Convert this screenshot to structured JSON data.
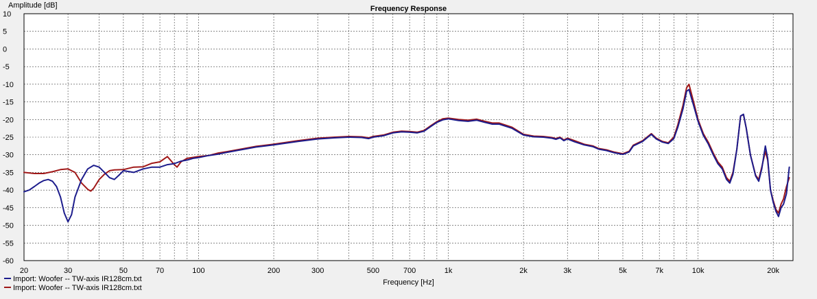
{
  "chart_data": {
    "type": "line",
    "title": "Frequency Response",
    "xlabel": "Frequency [Hz]",
    "ylabel": "Amplitude [dB]",
    "xscale": "log",
    "xlim": [
      20,
      24000
    ],
    "ylim": [
      -60,
      10
    ],
    "grid": true,
    "legend_position": "bottom-left",
    "xticks": [
      {
        "v": 20,
        "label": "20"
      },
      {
        "v": 30,
        "label": "30"
      },
      {
        "v": 50,
        "label": "50"
      },
      {
        "v": 70,
        "label": "70"
      },
      {
        "v": 100,
        "label": "100"
      },
      {
        "v": 200,
        "label": "200"
      },
      {
        "v": 300,
        "label": "300"
      },
      {
        "v": 500,
        "label": "500"
      },
      {
        "v": 700,
        "label": "700"
      },
      {
        "v": 1000,
        "label": "1k"
      },
      {
        "v": 2000,
        "label": "2k"
      },
      {
        "v": 3000,
        "label": "3k"
      },
      {
        "v": 5000,
        "label": "5k"
      },
      {
        "v": 7000,
        "label": "7k"
      },
      {
        "v": 10000,
        "label": "10k"
      },
      {
        "v": 20000,
        "label": "20k"
      }
    ],
    "yticks": [
      10,
      5,
      0,
      -5,
      -10,
      -15,
      -20,
      -25,
      -30,
      -35,
      -40,
      -45,
      -50,
      -55,
      -60
    ],
    "series": [
      {
        "name": "Import: Woofer -- TW-axis IR128cm.txt",
        "color": "#1c1c8c",
        "points": [
          [
            20,
            -40.5
          ],
          [
            21,
            -40
          ],
          [
            22,
            -39
          ],
          [
            23,
            -38
          ],
          [
            24,
            -37.3
          ],
          [
            25,
            -37
          ],
          [
            26,
            -37.5
          ],
          [
            27,
            -39
          ],
          [
            28,
            -42
          ],
          [
            29,
            -46.5
          ],
          [
            30,
            -49
          ],
          [
            31,
            -47
          ],
          [
            32,
            -42
          ],
          [
            34,
            -37
          ],
          [
            36,
            -34
          ],
          [
            38,
            -33
          ],
          [
            40,
            -33.5
          ],
          [
            42,
            -35
          ],
          [
            44,
            -36.5
          ],
          [
            46,
            -37
          ],
          [
            48,
            -35.8
          ],
          [
            50,
            -34.5
          ],
          [
            55,
            -35
          ],
          [
            60,
            -34
          ],
          [
            65,
            -33.5
          ],
          [
            70,
            -33.5
          ],
          [
            75,
            -32.8
          ],
          [
            80,
            -32.5
          ],
          [
            85,
            -31.8
          ],
          [
            90,
            -31.5
          ],
          [
            95,
            -31
          ],
          [
            100,
            -30.8
          ],
          [
            110,
            -30.2
          ],
          [
            120,
            -29.8
          ],
          [
            130,
            -29.3
          ],
          [
            150,
            -28.5
          ],
          [
            170,
            -27.8
          ],
          [
            200,
            -27.2
          ],
          [
            250,
            -26.2
          ],
          [
            300,
            -25.5
          ],
          [
            350,
            -25.2
          ],
          [
            400,
            -25
          ],
          [
            450,
            -25.1
          ],
          [
            480,
            -25.4
          ],
          [
            500,
            -25
          ],
          [
            550,
            -24.6
          ],
          [
            600,
            -23.8
          ],
          [
            650,
            -23.5
          ],
          [
            700,
            -23.6
          ],
          [
            750,
            -23.8
          ],
          [
            800,
            -23.3
          ],
          [
            850,
            -22
          ],
          [
            900,
            -20.8
          ],
          [
            950,
            -20.1
          ],
          [
            1000,
            -19.8
          ],
          [
            1100,
            -20.3
          ],
          [
            1200,
            -20.5
          ],
          [
            1300,
            -20.2
          ],
          [
            1400,
            -20.8
          ],
          [
            1500,
            -21.3
          ],
          [
            1600,
            -21.3
          ],
          [
            1800,
            -22.5
          ],
          [
            2000,
            -24.4
          ],
          [
            2200,
            -24.9
          ],
          [
            2400,
            -25
          ],
          [
            2600,
            -25.3
          ],
          [
            2700,
            -25.6
          ],
          [
            2800,
            -25.2
          ],
          [
            2900,
            -26
          ],
          [
            3000,
            -25.5
          ],
          [
            3200,
            -26.3
          ],
          [
            3500,
            -27.2
          ],
          [
            3800,
            -27.7
          ],
          [
            4000,
            -28.4
          ],
          [
            4300,
            -28.8
          ],
          [
            4600,
            -29.4
          ],
          [
            5000,
            -29.9
          ],
          [
            5300,
            -29.2
          ],
          [
            5500,
            -27.5
          ],
          [
            6000,
            -26.2
          ],
          [
            6500,
            -24.2
          ],
          [
            6800,
            -25.5
          ],
          [
            7200,
            -26.4
          ],
          [
            7600,
            -26.8
          ],
          [
            8000,
            -25.4
          ],
          [
            8300,
            -22.2
          ],
          [
            8700,
            -17
          ],
          [
            9000,
            -12
          ],
          [
            9200,
            -11.5
          ],
          [
            9600,
            -16
          ],
          [
            10000,
            -20.5
          ],
          [
            10500,
            -24.5
          ],
          [
            11000,
            -27
          ],
          [
            11500,
            -30
          ],
          [
            12000,
            -32.5
          ],
          [
            12500,
            -34
          ],
          [
            13000,
            -37
          ],
          [
            13400,
            -38
          ],
          [
            13800,
            -35.5
          ],
          [
            14300,
            -28.5
          ],
          [
            14800,
            -19
          ],
          [
            15200,
            -18.5
          ],
          [
            15600,
            -22.5
          ],
          [
            16200,
            -30
          ],
          [
            17000,
            -36
          ],
          [
            17500,
            -37.5
          ],
          [
            18000,
            -34
          ],
          [
            18600,
            -27.5
          ],
          [
            19000,
            -31
          ],
          [
            19500,
            -40
          ],
          [
            20000,
            -43.5
          ],
          [
            20500,
            -46
          ],
          [
            21000,
            -47.5
          ],
          [
            21500,
            -45
          ],
          [
            22000,
            -44
          ],
          [
            22600,
            -41
          ],
          [
            23200,
            -33.5
          ]
        ]
      },
      {
        "name": "Import: Woofer -- TW-axis IR128cm.txt",
        "color": "#a01818",
        "points": [
          [
            20,
            -35
          ],
          [
            22,
            -35.3
          ],
          [
            24,
            -35.3
          ],
          [
            26,
            -34.8
          ],
          [
            28,
            -34.2
          ],
          [
            30,
            -34
          ],
          [
            32,
            -35
          ],
          [
            34,
            -38
          ],
          [
            36,
            -39.8
          ],
          [
            37,
            -40.3
          ],
          [
            38,
            -39.5
          ],
          [
            40,
            -37
          ],
          [
            42,
            -35.5
          ],
          [
            44,
            -34.5
          ],
          [
            46,
            -34.3
          ],
          [
            50,
            -34.2
          ],
          [
            55,
            -33.5
          ],
          [
            60,
            -33.4
          ],
          [
            65,
            -32.4
          ],
          [
            70,
            -32
          ],
          [
            75,
            -30.5
          ],
          [
            80,
            -32.8
          ],
          [
            82,
            -33.5
          ],
          [
            85,
            -32
          ],
          [
            90,
            -31
          ],
          [
            100,
            -30.5
          ],
          [
            110,
            -30.2
          ],
          [
            120,
            -29.5
          ],
          [
            130,
            -29.1
          ],
          [
            150,
            -28.3
          ],
          [
            170,
            -27.6
          ],
          [
            200,
            -27
          ],
          [
            250,
            -26
          ],
          [
            300,
            -25.3
          ],
          [
            350,
            -25
          ],
          [
            400,
            -24.8
          ],
          [
            450,
            -24.9
          ],
          [
            480,
            -25.2
          ],
          [
            500,
            -24.8
          ],
          [
            550,
            -24.4
          ],
          [
            600,
            -23.6
          ],
          [
            650,
            -23.3
          ],
          [
            700,
            -23.4
          ],
          [
            750,
            -23.6
          ],
          [
            800,
            -23.1
          ],
          [
            850,
            -21.8
          ],
          [
            900,
            -20.6
          ],
          [
            950,
            -19.8
          ],
          [
            1000,
            -19.6
          ],
          [
            1100,
            -20
          ],
          [
            1200,
            -20.2
          ],
          [
            1300,
            -19.9
          ],
          [
            1400,
            -20.5
          ],
          [
            1500,
            -21
          ],
          [
            1600,
            -21
          ],
          [
            1800,
            -22.2
          ],
          [
            2000,
            -24.2
          ],
          [
            2200,
            -24.7
          ],
          [
            2400,
            -24.8
          ],
          [
            2600,
            -25.1
          ],
          [
            2700,
            -25.4
          ],
          [
            2800,
            -25
          ],
          [
            2900,
            -25.8
          ],
          [
            3000,
            -25.3
          ],
          [
            3200,
            -26
          ],
          [
            3500,
            -27
          ],
          [
            3800,
            -27.5
          ],
          [
            4000,
            -28.2
          ],
          [
            4300,
            -28.6
          ],
          [
            4600,
            -29.2
          ],
          [
            5000,
            -29.7
          ],
          [
            5300,
            -29
          ],
          [
            5500,
            -27.3
          ],
          [
            6000,
            -26
          ],
          [
            6500,
            -24
          ],
          [
            6800,
            -25.3
          ],
          [
            7200,
            -26.2
          ],
          [
            7600,
            -26.6
          ],
          [
            8000,
            -25
          ],
          [
            8300,
            -21.5
          ],
          [
            8700,
            -16
          ],
          [
            9000,
            -11
          ],
          [
            9200,
            -10
          ],
          [
            9600,
            -15
          ],
          [
            10000,
            -20
          ],
          [
            10500,
            -24
          ],
          [
            11000,
            -26.5
          ],
          [
            11500,
            -29.5
          ],
          [
            12000,
            -32
          ],
          [
            12500,
            -33.5
          ],
          [
            13000,
            -36.5
          ],
          [
            13400,
            -37.5
          ],
          [
            13800,
            -35
          ],
          [
            14300,
            -28.5
          ],
          [
            14800,
            -19
          ],
          [
            15200,
            -18.6
          ],
          [
            15600,
            -22.5
          ],
          [
            16200,
            -30
          ],
          [
            17000,
            -35.8
          ],
          [
            17500,
            -37
          ],
          [
            18000,
            -33.5
          ],
          [
            18600,
            -29
          ],
          [
            19000,
            -31.5
          ],
          [
            19500,
            -40
          ],
          [
            20000,
            -43
          ],
          [
            20500,
            -45.5
          ],
          [
            21000,
            -46.5
          ],
          [
            21500,
            -44
          ],
          [
            22000,
            -42.5
          ],
          [
            22600,
            -39
          ],
          [
            23200,
            -36.5
          ]
        ]
      }
    ]
  }
}
